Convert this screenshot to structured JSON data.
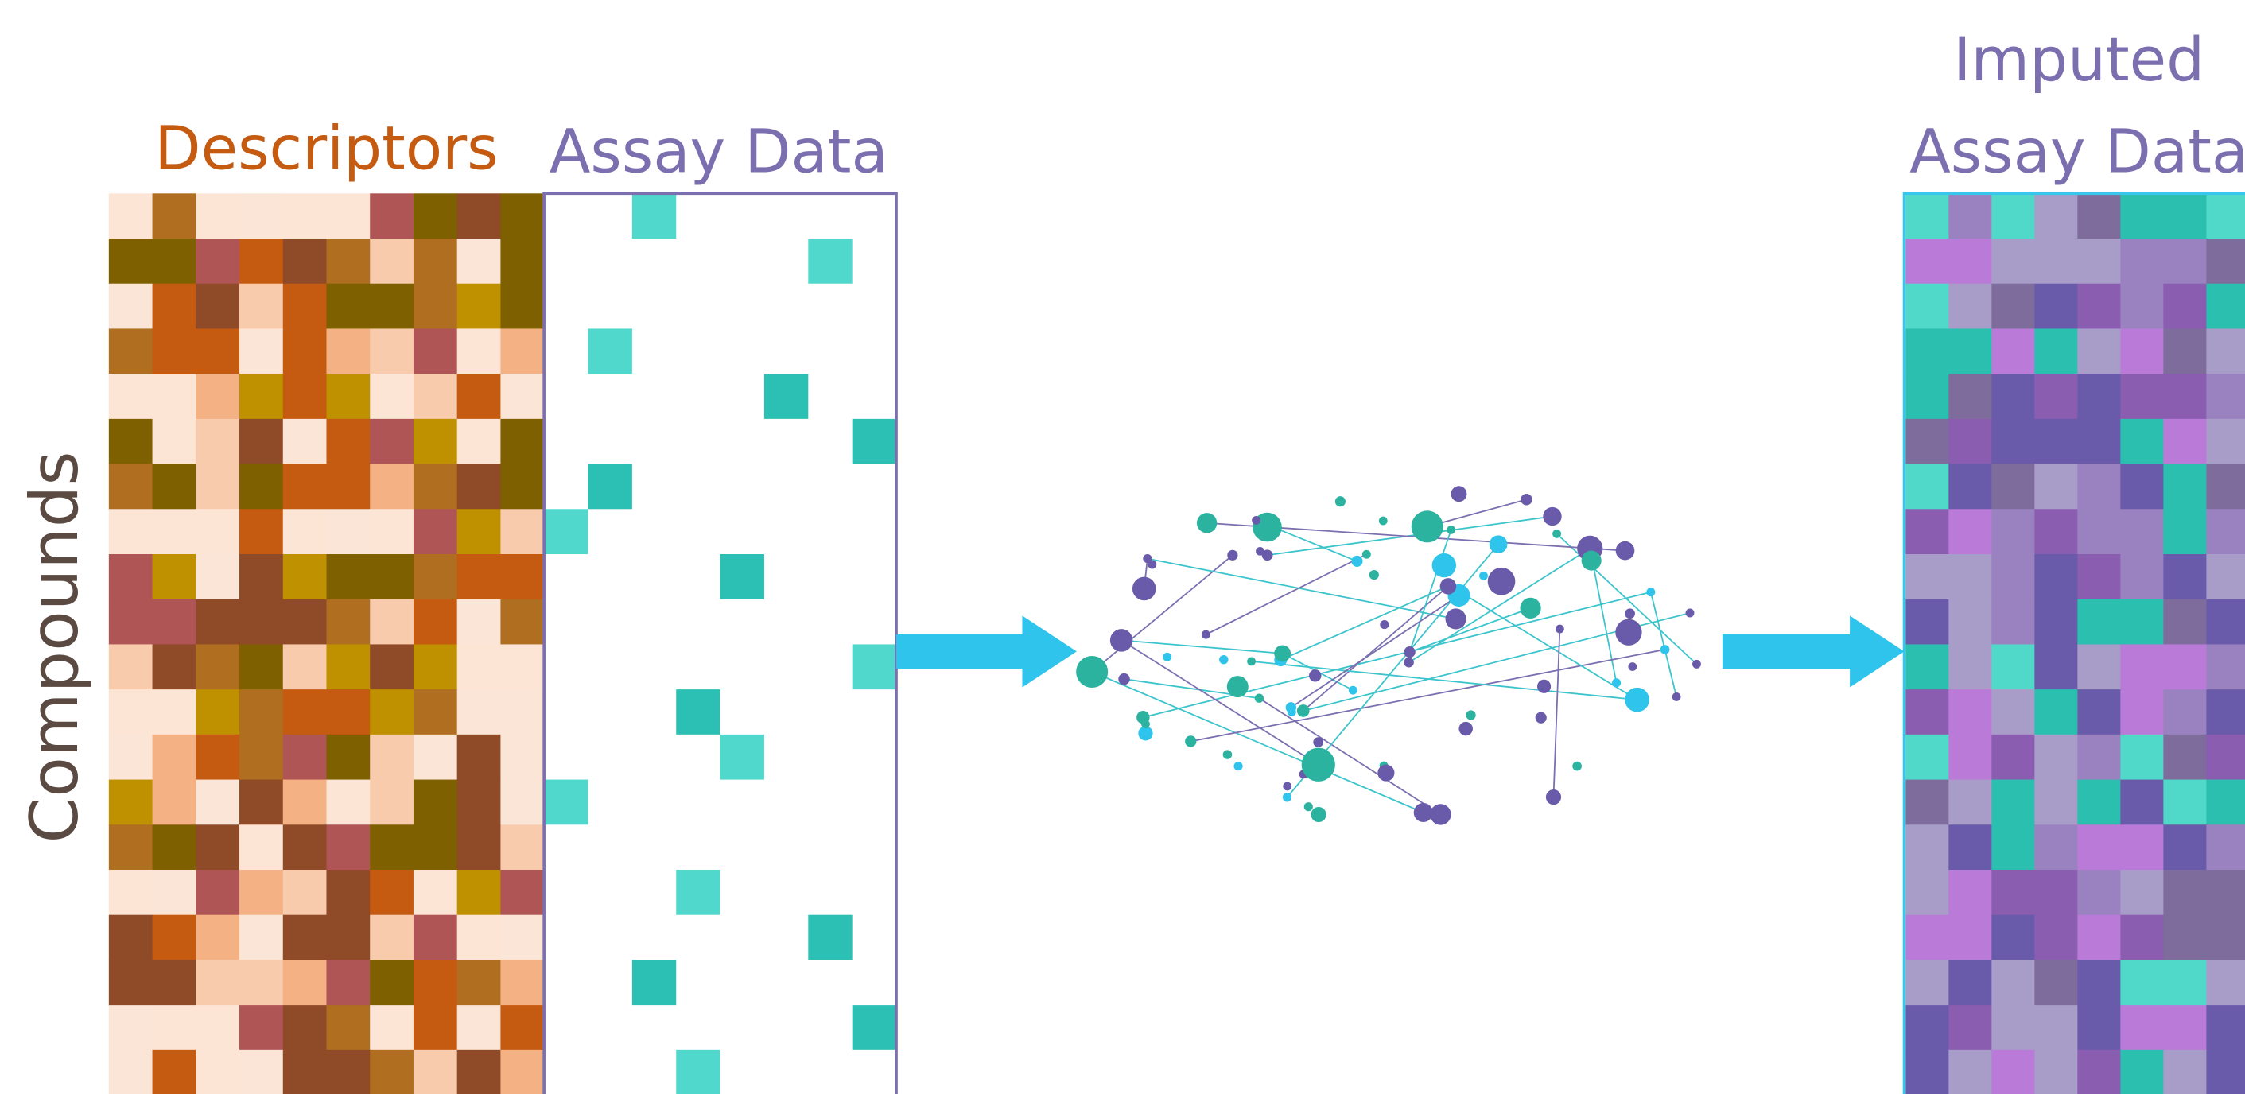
{
  "labels": {
    "descriptors": "Descriptors",
    "assay_data": "Assay Data",
    "compounds": "Compounds",
    "imputed": [
      "Imputed",
      "Assay Data"
    ]
  }
}
